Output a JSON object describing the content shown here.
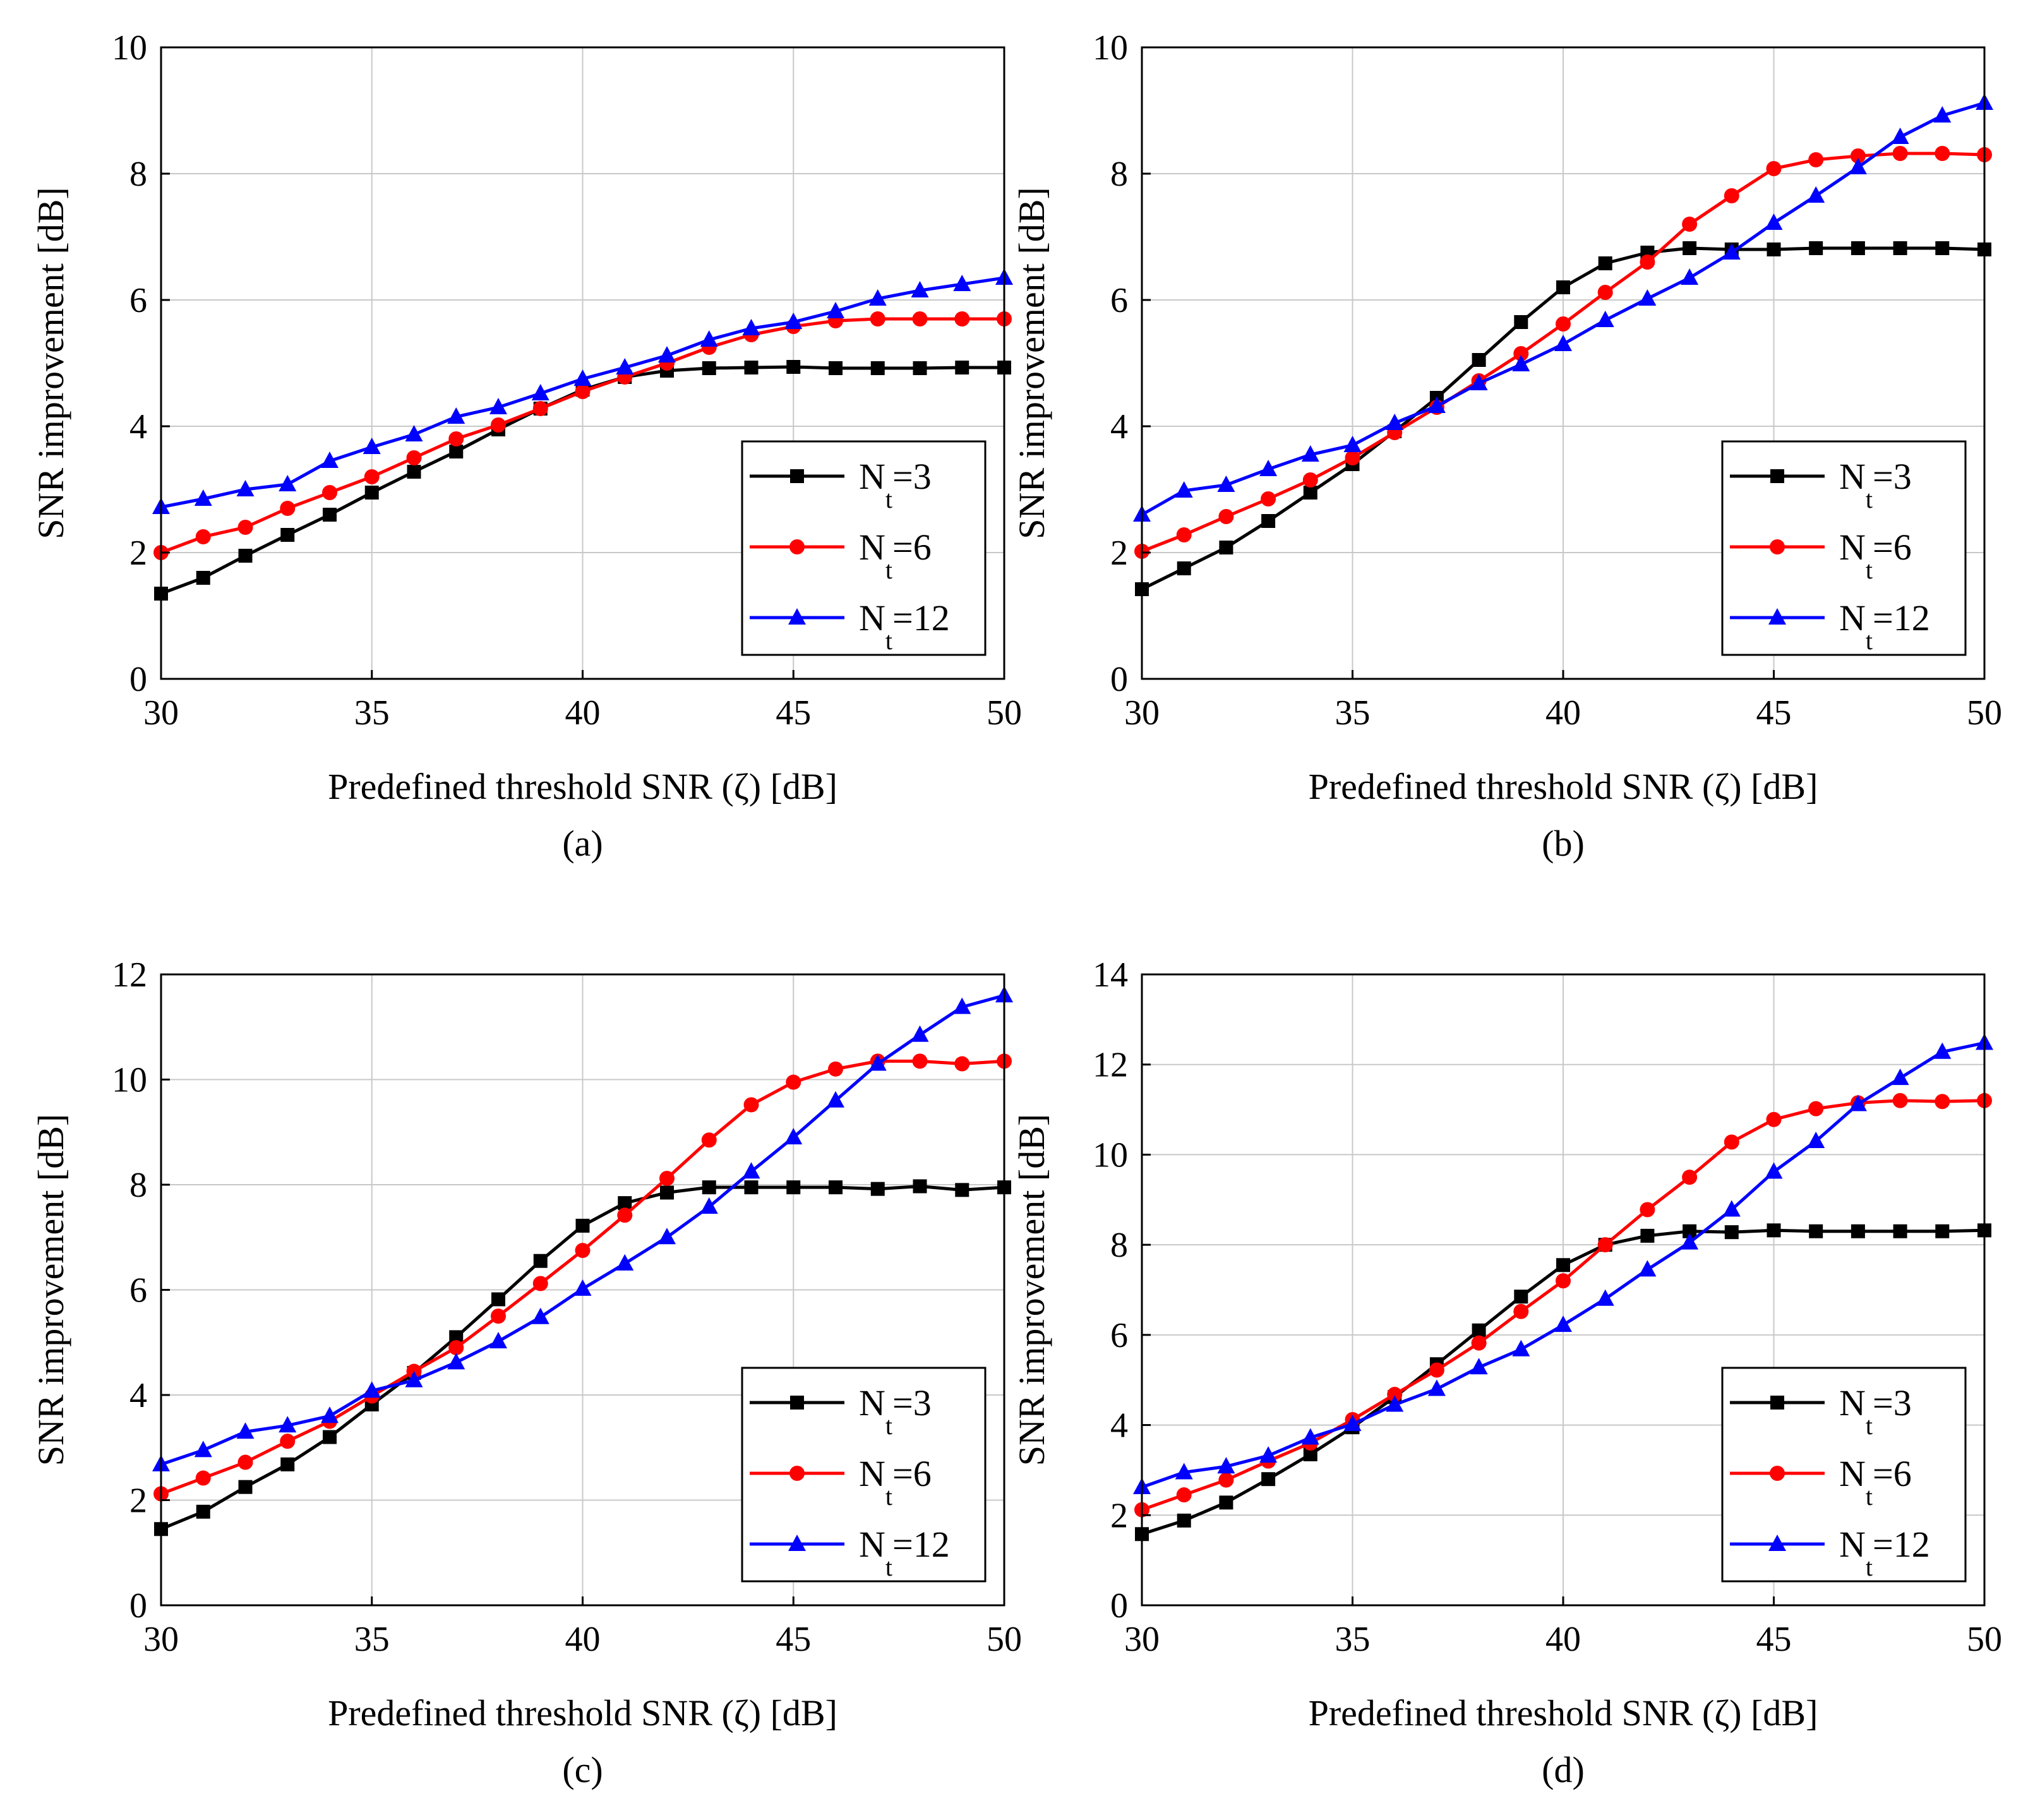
{
  "chart_data": [
    {
      "type": "line",
      "panel_label": "(a)",
      "xlabel": "Predefined threshold SNR (ζ) [dB]",
      "ylabel": "SNR improvement [dB]",
      "xlim": [
        30,
        50
      ],
      "ylim": [
        0,
        10
      ],
      "xticks": [
        30,
        35,
        40,
        45,
        50
      ],
      "yticks": [
        0,
        2,
        4,
        6,
        8,
        10
      ],
      "grid": true,
      "legend_position": "lower-right",
      "x": [
        30,
        31,
        32,
        33,
        34,
        35,
        36,
        37,
        38,
        39,
        40,
        41,
        42,
        43,
        44,
        45,
        46,
        47,
        48,
        49,
        50
      ],
      "series": [
        {
          "name": "N",
          "sub": "t",
          "suffix": "=3",
          "color": "#000000",
          "marker": "square",
          "values": [
            1.35,
            1.6,
            1.95,
            2.28,
            2.6,
            2.95,
            3.28,
            3.6,
            3.95,
            4.28,
            4.58,
            4.78,
            4.88,
            4.92,
            4.93,
            4.94,
            4.92,
            4.92,
            4.92,
            4.93,
            4.93
          ]
        },
        {
          "name": "N",
          "sub": "t",
          "suffix": "=6",
          "color": "#ff0000",
          "marker": "circle",
          "values": [
            2.0,
            2.25,
            2.4,
            2.7,
            2.95,
            3.2,
            3.5,
            3.8,
            4.02,
            4.28,
            4.55,
            4.78,
            5.0,
            5.25,
            5.45,
            5.58,
            5.67,
            5.7,
            5.7,
            5.7,
            5.7
          ]
        },
        {
          "name": "N",
          "sub": "t",
          "suffix": "=12",
          "color": "#0000ff",
          "marker": "triangle",
          "values": [
            2.72,
            2.85,
            3.0,
            3.08,
            3.45,
            3.67,
            3.87,
            4.15,
            4.3,
            4.52,
            4.75,
            4.93,
            5.12,
            5.37,
            5.55,
            5.65,
            5.82,
            6.02,
            6.15,
            6.25,
            6.35
          ]
        }
      ]
    },
    {
      "type": "line",
      "panel_label": "(b)",
      "xlabel": "Predefined threshold SNR (ζ) [dB]",
      "ylabel": "SNR improvement [dB]",
      "xlim": [
        30,
        50
      ],
      "ylim": [
        0,
        10
      ],
      "xticks": [
        30,
        35,
        40,
        45,
        50
      ],
      "yticks": [
        0,
        2,
        4,
        6,
        8,
        10
      ],
      "grid": true,
      "legend_position": "lower-right",
      "x": [
        30,
        31,
        32,
        33,
        34,
        35,
        36,
        37,
        38,
        39,
        40,
        41,
        42,
        43,
        44,
        45,
        46,
        47,
        48,
        49,
        50
      ],
      "series": [
        {
          "name": "N",
          "sub": "t",
          "suffix": "=3",
          "color": "#000000",
          "marker": "square",
          "values": [
            1.42,
            1.75,
            2.08,
            2.5,
            2.95,
            3.4,
            3.92,
            4.45,
            5.05,
            5.65,
            6.2,
            6.58,
            6.75,
            6.82,
            6.8,
            6.8,
            6.82,
            6.82,
            6.82,
            6.82,
            6.8
          ]
        },
        {
          "name": "N",
          "sub": "t",
          "suffix": "=6",
          "color": "#ff0000",
          "marker": "circle",
          "values": [
            2.02,
            2.28,
            2.57,
            2.85,
            3.15,
            3.5,
            3.9,
            4.3,
            4.72,
            5.15,
            5.62,
            6.12,
            6.6,
            7.2,
            7.65,
            8.08,
            8.22,
            8.28,
            8.32,
            8.32,
            8.3
          ]
        },
        {
          "name": "N",
          "sub": "t",
          "suffix": "=12",
          "color": "#0000ff",
          "marker": "triangle",
          "values": [
            2.6,
            2.98,
            3.07,
            3.32,
            3.55,
            3.7,
            4.05,
            4.32,
            4.68,
            4.98,
            5.3,
            5.68,
            6.02,
            6.35,
            6.75,
            7.22,
            7.65,
            8.1,
            8.58,
            8.92,
            9.12
          ]
        }
      ]
    },
    {
      "type": "line",
      "panel_label": "(c)",
      "xlabel": "Predefined threshold SNR (ζ) [dB]",
      "ylabel": "SNR improvement [dB]",
      "xlim": [
        30,
        50
      ],
      "ylim": [
        0,
        12
      ],
      "xticks": [
        30,
        35,
        40,
        45,
        50
      ],
      "yticks": [
        0,
        2,
        4,
        6,
        8,
        10,
        12
      ],
      "grid": true,
      "legend_position": "lower-right",
      "x": [
        30,
        31,
        32,
        33,
        34,
        35,
        36,
        37,
        38,
        39,
        40,
        41,
        42,
        43,
        44,
        45,
        46,
        47,
        48,
        49,
        50
      ],
      "series": [
        {
          "name": "N",
          "sub": "t",
          "suffix": "=3",
          "color": "#000000",
          "marker": "square",
          "values": [
            1.45,
            1.78,
            2.25,
            2.68,
            3.2,
            3.82,
            4.42,
            5.1,
            5.82,
            6.55,
            7.22,
            7.65,
            7.85,
            7.95,
            7.95,
            7.95,
            7.95,
            7.92,
            7.97,
            7.9,
            7.95
          ]
        },
        {
          "name": "N",
          "sub": "t",
          "suffix": "=6",
          "color": "#ff0000",
          "marker": "circle",
          "values": [
            2.12,
            2.42,
            2.72,
            3.12,
            3.5,
            3.98,
            4.45,
            4.9,
            5.5,
            6.12,
            6.75,
            7.42,
            8.12,
            8.85,
            9.52,
            9.95,
            10.2,
            10.35,
            10.35,
            10.3,
            10.35
          ]
        },
        {
          "name": "N",
          "sub": "t",
          "suffix": "=12",
          "color": "#0000ff",
          "marker": "triangle",
          "values": [
            2.68,
            2.95,
            3.3,
            3.42,
            3.6,
            4.08,
            4.28,
            4.62,
            5.02,
            5.48,
            6.02,
            6.5,
            7.0,
            7.58,
            8.25,
            8.9,
            9.6,
            10.3,
            10.85,
            11.38,
            11.6
          ]
        }
      ]
    },
    {
      "type": "line",
      "panel_label": "(d)",
      "xlabel": "Predefined threshold SNR (ζ) [dB]",
      "ylabel": "SNR improvement [dB]",
      "xlim": [
        30,
        50
      ],
      "ylim": [
        0,
        14
      ],
      "xticks": [
        30,
        35,
        40,
        45,
        50
      ],
      "yticks": [
        0,
        2,
        4,
        6,
        8,
        10,
        12,
        14
      ],
      "grid": true,
      "legend_position": "lower-right",
      "x": [
        30,
        31,
        32,
        33,
        34,
        35,
        36,
        37,
        38,
        39,
        40,
        41,
        42,
        43,
        44,
        45,
        46,
        47,
        48,
        49,
        50
      ],
      "series": [
        {
          "name": "N",
          "sub": "t",
          "suffix": "=3",
          "color": "#000000",
          "marker": "square",
          "values": [
            1.58,
            1.88,
            2.28,
            2.8,
            3.35,
            3.95,
            4.62,
            5.35,
            6.1,
            6.85,
            7.55,
            8.0,
            8.2,
            8.3,
            8.28,
            8.32,
            8.3,
            8.3,
            8.3,
            8.3,
            8.32
          ]
        },
        {
          "name": "N",
          "sub": "t",
          "suffix": "=6",
          "color": "#ff0000",
          "marker": "circle",
          "values": [
            2.12,
            2.45,
            2.78,
            3.2,
            3.6,
            4.12,
            4.68,
            5.22,
            5.82,
            6.52,
            7.2,
            8.0,
            8.78,
            9.5,
            10.28,
            10.78,
            11.02,
            11.15,
            11.2,
            11.18,
            11.2
          ]
        },
        {
          "name": "N",
          "sub": "t",
          "suffix": "=12",
          "color": "#0000ff",
          "marker": "triangle",
          "values": [
            2.62,
            2.95,
            3.08,
            3.32,
            3.72,
            4.02,
            4.45,
            4.8,
            5.28,
            5.68,
            6.22,
            6.8,
            7.45,
            8.05,
            8.78,
            9.62,
            10.3,
            11.12,
            11.7,
            12.28,
            12.48
          ]
        }
      ]
    }
  ]
}
